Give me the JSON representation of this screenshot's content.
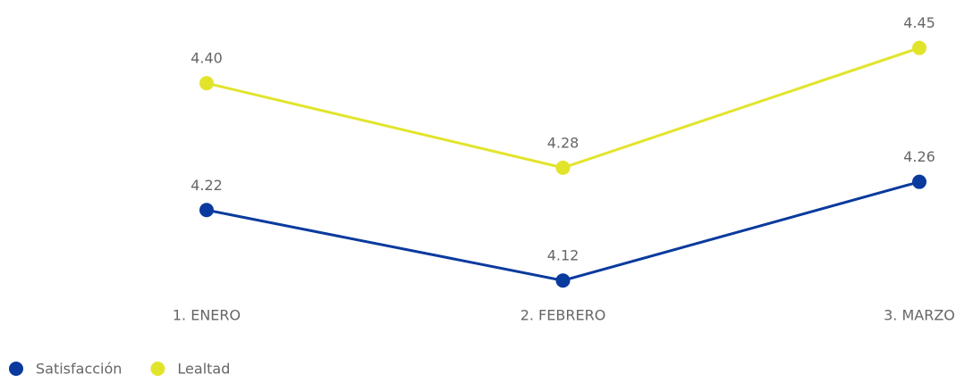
{
  "chart_data": {
    "type": "line",
    "categories": [
      "1. ENERO",
      "2. FEBRERO",
      "3. MARZO"
    ],
    "series": [
      {
        "name": "Satisfacción",
        "color": "#0a3a9e",
        "values": [
          4.22,
          4.12,
          4.26
        ],
        "value_labels": [
          "4.22",
          "4.12",
          "4.26"
        ]
      },
      {
        "name": "Lealtad",
        "color": "#e2e42b",
        "values": [
          4.4,
          4.28,
          4.45
        ],
        "value_labels": [
          "4.40",
          "4.28",
          "4.45"
        ]
      }
    ],
    "ylim": [
      4.1,
      4.48
    ],
    "grid": false,
    "legend": "bottom-left"
  }
}
